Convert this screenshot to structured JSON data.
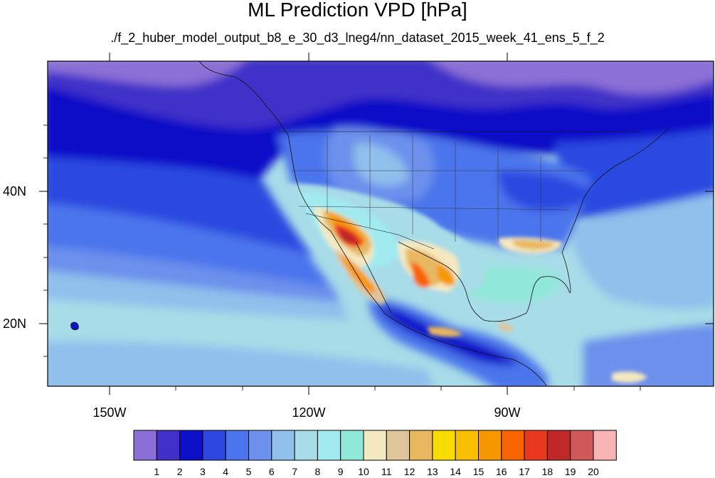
{
  "title": "ML Prediction VPD [hPa]",
  "subtitle": "./f_2_huber_model_output_b8_e_30_d3_lneg4/nn_dataset_2015_week_41_ens_5_f_2",
  "map": {
    "projection": "cylindrical-equidistant",
    "lon_range": [
      -160,
      -62
    ],
    "lat_range": [
      10,
      59
    ],
    "x_ticks": [
      "150W",
      "120W",
      "90W"
    ],
    "y_ticks": [
      "40N",
      "20N"
    ]
  },
  "colorbar": {
    "labels": [
      "1",
      "2",
      "3",
      "4",
      "5",
      "6",
      "7",
      "8",
      "9",
      "10",
      "11",
      "12",
      "13",
      "14",
      "15",
      "16",
      "17",
      "18",
      "19",
      "20"
    ],
    "colors": [
      "#8c6fd6",
      "#4030c8",
      "#0c10c8",
      "#2c48e0",
      "#4c74ec",
      "#6c90ec",
      "#90c0ec",
      "#a8dce8",
      "#a0eaf0",
      "#90e8d8",
      "#f4e8c0",
      "#e0c49a",
      "#e8b860",
      "#f8dc00",
      "#f8c000",
      "#f89800",
      "#f86400",
      "#e83820",
      "#c02828",
      "#d05858",
      "#f8b4b4"
    ]
  }
}
